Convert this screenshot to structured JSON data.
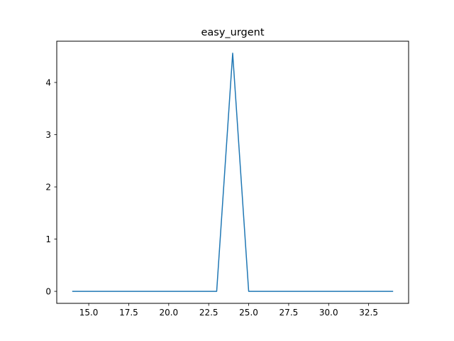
{
  "chart_data": {
    "type": "line",
    "title": "easy_urgent",
    "xlabel": "",
    "ylabel": "",
    "xlim": [
      13,
      35
    ],
    "ylim": [
      -0.23,
      4.79
    ],
    "x_ticks": [
      15.0,
      17.5,
      20.0,
      22.5,
      25.0,
      27.5,
      30.0,
      32.5
    ],
    "x_tick_labels": [
      "15.0",
      "17.5",
      "20.0",
      "22.5",
      "25.0",
      "27.5",
      "30.0",
      "32.5"
    ],
    "y_ticks": [
      0,
      1,
      2,
      3,
      4
    ],
    "y_tick_labels": [
      "0",
      "1",
      "2",
      "3",
      "4"
    ],
    "grid": false,
    "series": [
      {
        "color": "#1f77b4",
        "x": [
          14,
          15,
          16,
          17,
          18,
          19,
          20,
          21,
          22,
          23,
          24,
          25,
          26,
          27,
          28,
          29,
          30,
          31,
          32,
          33,
          34
        ],
        "y": [
          0,
          0,
          0,
          0,
          0,
          0,
          0,
          0,
          0,
          0,
          4.56,
          0,
          0,
          0,
          0,
          0,
          0,
          0,
          0,
          0,
          0
        ]
      }
    ]
  }
}
